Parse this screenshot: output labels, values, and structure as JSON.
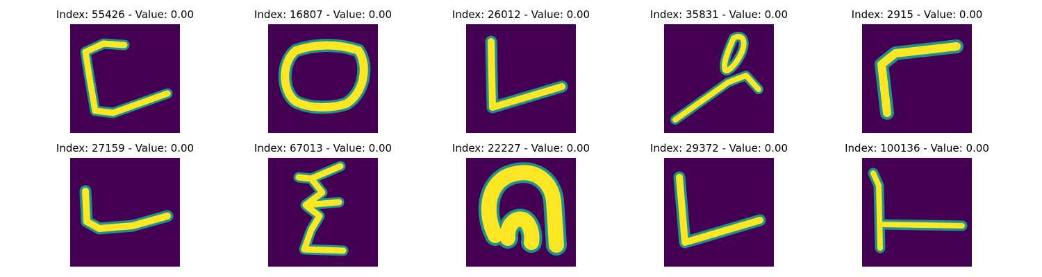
{
  "colors": {
    "background": "#440154",
    "stroke": "#fde725",
    "edge": "#21918c"
  },
  "images": [
    {
      "title": "Index: 55426 - Value: 0.00",
      "glyph": "bracket-c-icon"
    },
    {
      "title": "Index: 16807 - Value: 0.00",
      "glyph": "oval-icon"
    },
    {
      "title": "Index: 26012 - Value: 0.00",
      "glyph": "v-check-icon"
    },
    {
      "title": "Index: 35831 - Value: 0.00",
      "glyph": "looped-diagonal-icon"
    },
    {
      "title": "Index: 2915 - Value: 0.00",
      "glyph": "corner-gamma-icon"
    },
    {
      "title": "Index: 27159 - Value: 0.00",
      "glyph": "l-shape-icon"
    },
    {
      "title": "Index: 67013 - Value: 0.00",
      "glyph": "zigzag-e-icon"
    },
    {
      "title": "Index: 22227 - Value: 0.00",
      "glyph": "arch-icon"
    },
    {
      "title": "Index: 29372 - Value: 0.00",
      "glyph": "v-check-icon"
    },
    {
      "title": "Index: 100136 - Value: 0.00",
      "glyph": "t-shape-icon"
    }
  ]
}
